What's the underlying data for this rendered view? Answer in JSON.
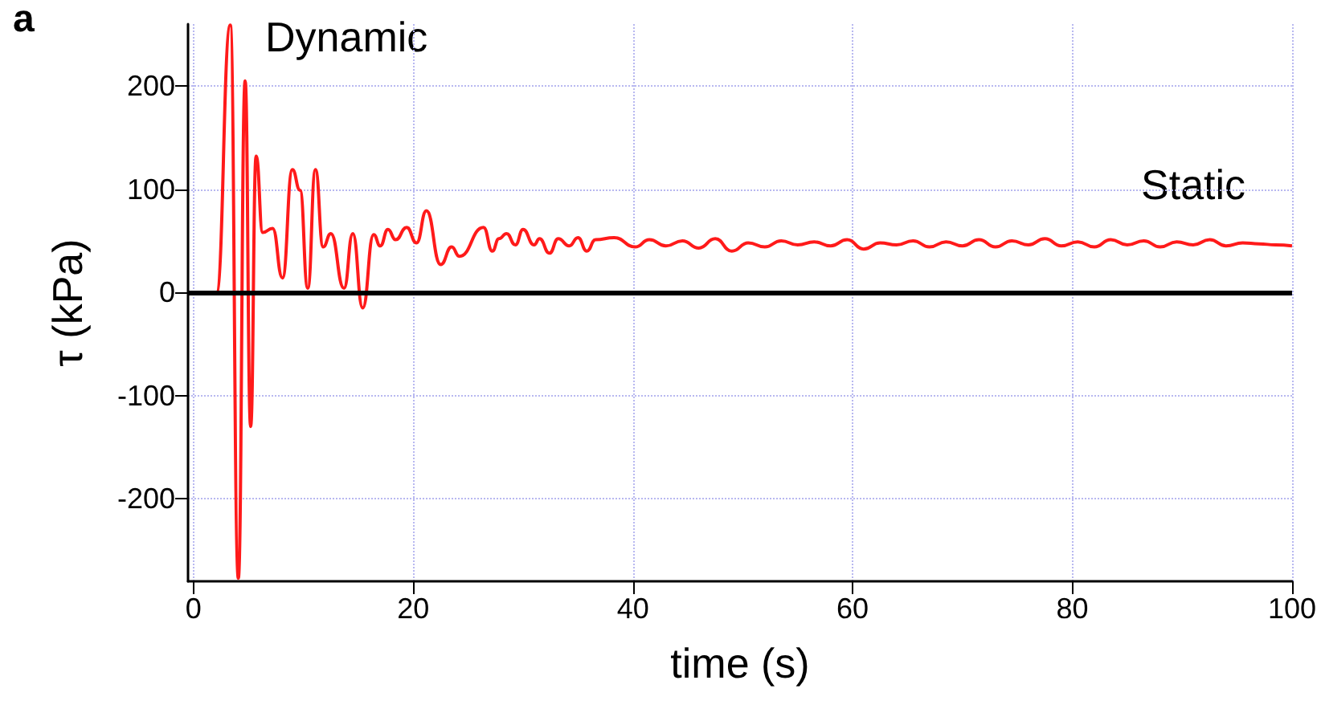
{
  "chart_data": {
    "type": "line",
    "xlabel": "time (s)",
    "ylabel": "τ (kPa)",
    "annotations": [
      "a",
      "Dynamic",
      "Static"
    ],
    "x": [
      -0.3,
      2.1,
      3.35,
      4.08,
      4.7,
      5.2,
      5.7,
      6.3,
      7.2,
      8.1,
      9.0,
      9.7,
      10.4,
      11.1,
      11.8,
      12.5,
      13.7,
      14.5,
      15.4,
      16.4,
      17.0,
      17.7,
      18.4,
      19.4,
      20.3,
      21.2,
      22.5,
      23.5,
      24.2,
      26.4,
      27.2,
      27.8,
      28.5,
      29.3,
      30.0,
      31.0,
      31.5,
      32.4,
      33.2,
      34.2,
      35.0,
      35.8,
      36.6,
      38.3,
      40.2,
      41.5,
      43,
      44.5,
      46,
      47.5,
      49,
      50.5,
      52,
      53.5,
      55,
      56.5,
      58,
      59.5,
      61,
      62.5,
      64,
      65.5,
      67,
      68.5,
      70,
      71.5,
      73,
      74.5,
      76,
      77.5,
      79,
      80.5,
      82,
      83.5,
      85,
      86.5,
      88,
      89.5,
      91,
      92.5,
      94,
      95.5,
      97,
      98.5,
      100
    ],
    "series": [
      {
        "color": "#ff1a1a",
        "values": [
          0,
          0,
          259,
          -277,
          205,
          -130,
          132,
          58,
          62,
          14,
          119,
          99,
          4,
          119,
          44,
          57,
          4,
          57,
          -15,
          56,
          45,
          61,
          51,
          63,
          48,
          79,
          27,
          44,
          35,
          63,
          40,
          52,
          57,
          46,
          61,
          46,
          52,
          38,
          52,
          45,
          53,
          40,
          51,
          53,
          44,
          51,
          45,
          50,
          43,
          52,
          40,
          48,
          44,
          50,
          46,
          49,
          45,
          51,
          42,
          48,
          46,
          50,
          44,
          49,
          45,
          51,
          44,
          50,
          46,
          52,
          45,
          49,
          44,
          51,
          46,
          50,
          44,
          49,
          46,
          51,
          45,
          48,
          47,
          46,
          45
        ]
      }
    ],
    "xlim": [
      -0.5,
      100
    ],
    "xticks": [
      0,
      20,
      40,
      60,
      80,
      100
    ],
    "ylim": [
      -280,
      260
    ],
    "yticks": [
      -200,
      -100,
      0,
      100,
      200
    ],
    "ref_lines": [
      {
        "axis": "y",
        "value": 0,
        "color": "#000000",
        "line_style": "solid"
      }
    ],
    "grid": true,
    "marker": "none",
    "line_style": "solid"
  }
}
